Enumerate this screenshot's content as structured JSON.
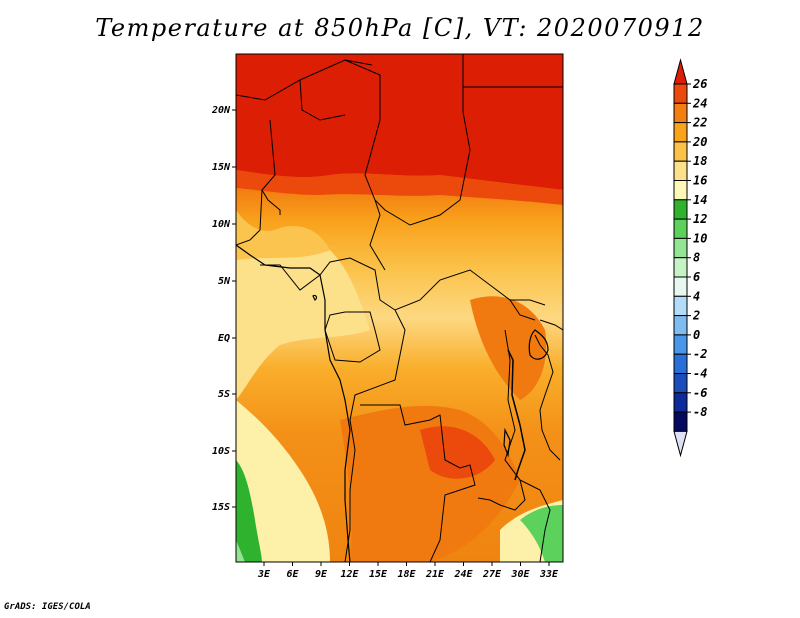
{
  "title": "Temperature at 850hPa [C], VT: 2020070912",
  "credit": "GrADS: IGES/COLA",
  "map": {
    "lat_labels": [
      "20N",
      "15N",
      "10N",
      "5N",
      "EQ",
      "5S",
      "10S",
      "15S"
    ],
    "lon_labels": [
      "3E",
      "6E",
      "9E",
      "12E",
      "15E",
      "18E",
      "21E",
      "24E",
      "27E",
      "30E",
      "33E"
    ]
  },
  "colorbar": {
    "labels": [
      "26",
      "24",
      "22",
      "20",
      "18",
      "16",
      "14",
      "12",
      "10",
      "8",
      "6",
      "4",
      "2",
      "0",
      "-2",
      "-4",
      "-6",
      "-8"
    ],
    "colors": [
      "#dc1e05",
      "#ec4a0c",
      "#f57e10",
      "#f9a21c",
      "#fbc24a",
      "#fde08a",
      "#fdf7b8",
      "#2fb32f",
      "#5cd15c",
      "#93e593",
      "#c6f3c6",
      "#e8f7f0",
      "#b2dcf7",
      "#7fbcf0",
      "#4a96e8",
      "#2a6ed8",
      "#1a4cbb",
      "#0b2c9a",
      "#050a60",
      "#dfe0f5"
    ]
  }
}
